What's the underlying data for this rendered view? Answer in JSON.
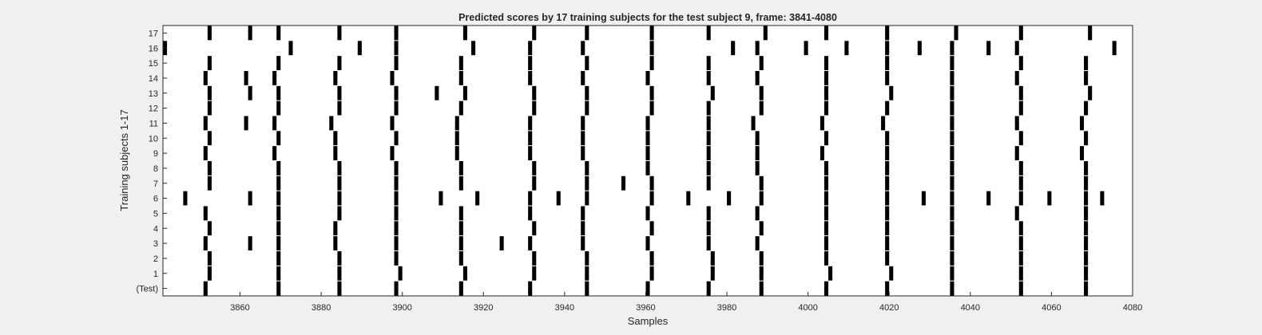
{
  "colors": {
    "background": "#f0f0f0",
    "axes_face": "#ffffff",
    "mark": "#000000",
    "text": "#262626"
  },
  "chart_data": {
    "type": "heatmap",
    "title": "Predicted scores by 17 training subjects for the test subject 9, frame: 3841-4080",
    "xlabel": "Samples",
    "ylabel": "Training subjects 1-17",
    "xlim": [
      3841,
      4080
    ],
    "xticks": [
      3860,
      3880,
      3900,
      3920,
      3940,
      3960,
      3980,
      4000,
      4020,
      4040,
      4060,
      4080
    ],
    "grid": false,
    "rows": [
      {
        "label": "(Test)",
        "marks": [
          3851,
          3869,
          3884,
          3898,
          3914,
          3931,
          3945,
          3960,
          3975,
          3988,
          4004,
          4019,
          4035,
          4052,
          4068
        ]
      },
      {
        "label": "1",
        "marks": [
          3852,
          3869,
          3884,
          3899,
          3915,
          3932,
          3945,
          3961,
          3976,
          3988,
          4005,
          4020,
          4035,
          4052,
          4068
        ]
      },
      {
        "label": "2",
        "marks": [
          3852,
          3869,
          3884,
          3898,
          3914,
          3932,
          3945,
          3961,
          3976,
          3988,
          4004,
          4019,
          4035,
          4052,
          4068
        ]
      },
      {
        "label": "3",
        "marks": [
          3851,
          3862,
          3869,
          3883,
          3898,
          3914,
          3924,
          3931,
          3944,
          3960,
          3975,
          3987,
          4004,
          4019,
          4035,
          4052,
          4068
        ]
      },
      {
        "label": "4",
        "marks": [
          3852,
          3869,
          3883,
          3898,
          3914,
          3932,
          3944,
          3961,
          3975,
          3988,
          4004,
          4019,
          4035,
          4052,
          4068
        ]
      },
      {
        "label": "5",
        "marks": [
          3851,
          3869,
          3884,
          3898,
          3914,
          3931,
          3944,
          3960,
          3975,
          3987,
          4004,
          4019,
          4035,
          4051,
          4068
        ]
      },
      {
        "label": "6",
        "marks": [
          3846,
          3862,
          3869,
          3884,
          3898,
          3909,
          3918,
          3931,
          3938,
          3945,
          3961,
          3970,
          3980,
          3988,
          4004,
          4019,
          4028,
          4035,
          4044,
          4052,
          4059,
          4068,
          4072
        ]
      },
      {
        "label": "7",
        "marks": [
          3852,
          3869,
          3884,
          3898,
          3914,
          3932,
          3945,
          3954,
          3961,
          3975,
          3988,
          4004,
          4019,
          4035,
          4052,
          4068
        ]
      },
      {
        "label": "8",
        "marks": [
          3852,
          3869,
          3884,
          3898,
          3914,
          3932,
          3945,
          3960,
          3975,
          3987,
          4004,
          4019,
          4035,
          4052,
          4068
        ]
      },
      {
        "label": "9",
        "marks": [
          3851,
          3868,
          3883,
          3897,
          3913,
          3931,
          3944,
          3960,
          3975,
          3987,
          4003,
          4019,
          4035,
          4051,
          4067
        ]
      },
      {
        "label": "10",
        "marks": [
          3852,
          3869,
          3883,
          3898,
          3913,
          3931,
          3944,
          3960,
          3975,
          3987,
          4004,
          4019,
          4035,
          4052,
          4068
        ]
      },
      {
        "label": "11",
        "marks": [
          3851,
          3861,
          3868,
          3882,
          3897,
          3913,
          3931,
          3944,
          3960,
          3975,
          3986,
          4003,
          4018,
          4035,
          4051,
          4067
        ]
      },
      {
        "label": "12",
        "marks": [
          3852,
          3869,
          3884,
          3898,
          3914,
          3932,
          3945,
          3961,
          3975,
          3988,
          4004,
          4019,
          4035,
          4052,
          4068
        ]
      },
      {
        "label": "13",
        "marks": [
          3852,
          3862,
          3869,
          3884,
          3898,
          3908,
          3915,
          3932,
          3945,
          3961,
          3976,
          3988,
          4004,
          4020,
          4035,
          4052,
          4069
        ]
      },
      {
        "label": "14",
        "marks": [
          3851,
          3861,
          3868,
          3883,
          3897,
          3914,
          3931,
          3944,
          3960,
          3975,
          3987,
          4004,
          4019,
          4035,
          4051,
          4068
        ]
      },
      {
        "label": "15",
        "marks": [
          3852,
          3869,
          3884,
          3898,
          3914,
          3931,
          3945,
          3961,
          3975,
          3988,
          4004,
          4019,
          4035,
          4052,
          4068
        ]
      },
      {
        "label": "16",
        "marks": [
          3841,
          3872,
          3889,
          3898,
          3917,
          3931,
          3944,
          3961,
          3981,
          3987,
          3999,
          4009,
          4019,
          4027,
          4035,
          4044,
          4051,
          4075
        ]
      },
      {
        "label": "17",
        "marks": [
          3852,
          3862,
          3869,
          3884,
          3898,
          3915,
          3932,
          3945,
          3961,
          3975,
          3989,
          4004,
          4019,
          4036,
          4052,
          4069
        ]
      }
    ]
  }
}
